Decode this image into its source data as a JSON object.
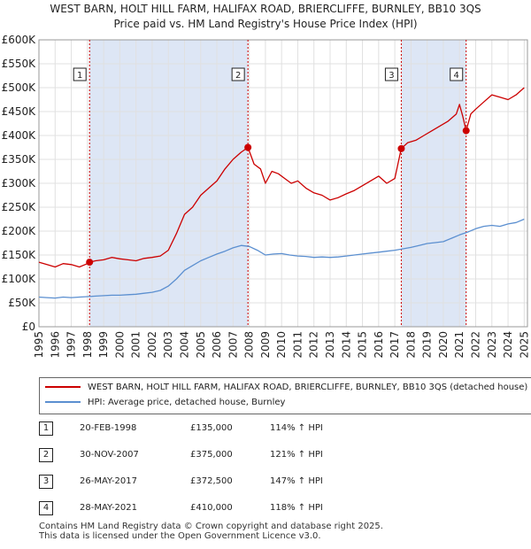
{
  "title_line1": "WEST BARN, HOLT HILL FARM, HALIFAX ROAD, BRIERCLIFFE, BURNLEY, BB10 3QS",
  "title_line2": "Price paid vs. HM Land Registry's House Price Index (HPI)",
  "colors": {
    "property": "#cc0000",
    "hpi": "#5b8fd0",
    "band": "#dde6f5",
    "grid": "#e0e0e0",
    "marker_line": "#cc0000"
  },
  "chart_data": {
    "type": "line",
    "xlim": [
      1995.0,
      2025.2
    ],
    "ylim": [
      0,
      600000
    ],
    "y_ticks": [
      0,
      50000,
      100000,
      150000,
      200000,
      250000,
      300000,
      350000,
      400000,
      450000,
      500000,
      550000,
      600000
    ],
    "y_tick_labels": [
      "£0",
      "£50K",
      "£100K",
      "£150K",
      "£200K",
      "£250K",
      "£300K",
      "£350K",
      "£400K",
      "£450K",
      "£500K",
      "£550K",
      "£600K"
    ],
    "x_ticks": [
      1995,
      1996,
      1997,
      1998,
      1999,
      2000,
      2001,
      2002,
      2003,
      2004,
      2005,
      2006,
      2007,
      2008,
      2009,
      2010,
      2011,
      2012,
      2013,
      2014,
      2015,
      2016,
      2017,
      2018,
      2019,
      2020,
      2021,
      2022,
      2023,
      2024,
      2025
    ],
    "x_tick_labels": [
      "1995",
      "1996",
      "1997",
      "1998",
      "1999",
      "2000",
      "2001",
      "2002",
      "2003",
      "2004",
      "2005",
      "2006",
      "2007",
      "2008",
      "2009",
      "2010",
      "2011",
      "2012",
      "2013",
      "2014",
      "2015",
      "2016",
      "2017",
      "2018",
      "2019",
      "2020",
      "2021",
      "2022",
      "2023",
      "2024",
      "2025"
    ],
    "shaded_bands": [
      [
        1998.13,
        2007.92
      ],
      [
        2017.4,
        2021.41
      ]
    ],
    "series": [
      {
        "name": "WEST BARN, HOLT HILL FARM, HALIFAX ROAD, BRIERCLIFFE, BURNLEY, BB10 3QS (detached house)",
        "x": [
          1995.0,
          1995.5,
          1996.0,
          1996.5,
          1997.0,
          1997.5,
          1998.0,
          1998.13,
          1998.5,
          1999.0,
          1999.5,
          2000.0,
          2000.5,
          2001.0,
          2001.5,
          2002.0,
          2002.5,
          2003.0,
          2003.5,
          2004.0,
          2004.5,
          2005.0,
          2005.5,
          2006.0,
          2006.5,
          2007.0,
          2007.5,
          2007.92,
          2008.3,
          2008.7,
          2009.0,
          2009.4,
          2009.8,
          2010.2,
          2010.6,
          2011.0,
          2011.5,
          2012.0,
          2012.5,
          2013.0,
          2013.5,
          2014.0,
          2014.5,
          2015.0,
          2015.5,
          2016.0,
          2016.5,
          2017.0,
          2017.4,
          2017.8,
          2018.3,
          2018.8,
          2019.3,
          2019.8,
          2020.3,
          2020.8,
          2021.0,
          2021.2,
          2021.41,
          2021.7,
          2022.0,
          2022.5,
          2023.0,
          2023.5,
          2024.0,
          2024.5,
          2025.0
        ],
        "y": [
          135000,
          130000,
          125000,
          132000,
          130000,
          125000,
          132000,
          135000,
          138000,
          140000,
          145000,
          142000,
          140000,
          138000,
          143000,
          145000,
          148000,
          160000,
          195000,
          235000,
          250000,
          275000,
          290000,
          305000,
          330000,
          350000,
          365000,
          375000,
          340000,
          330000,
          300000,
          325000,
          320000,
          310000,
          300000,
          305000,
          290000,
          280000,
          275000,
          265000,
          270000,
          278000,
          285000,
          295000,
          305000,
          315000,
          300000,
          310000,
          372500,
          385000,
          390000,
          400000,
          410000,
          420000,
          430000,
          445000,
          465000,
          440000,
          410000,
          445000,
          455000,
          470000,
          485000,
          480000,
          475000,
          485000,
          500000
        ]
      },
      {
        "name": "HPI: Average price, detached house, Burnley",
        "x": [
          1995.0,
          1995.5,
          1996.0,
          1996.5,
          1997.0,
          1997.5,
          1998.0,
          1998.5,
          1999.0,
          1999.5,
          2000.0,
          2000.5,
          2001.0,
          2001.5,
          2002.0,
          2002.5,
          2003.0,
          2003.5,
          2004.0,
          2004.5,
          2005.0,
          2005.5,
          2006.0,
          2006.5,
          2007.0,
          2007.5,
          2008.0,
          2008.5,
          2009.0,
          2009.5,
          2010.0,
          2010.5,
          2011.0,
          2011.5,
          2012.0,
          2012.5,
          2013.0,
          2013.5,
          2014.0,
          2014.5,
          2015.0,
          2015.5,
          2016.0,
          2016.5,
          2017.0,
          2017.5,
          2018.0,
          2018.5,
          2019.0,
          2019.5,
          2020.0,
          2020.5,
          2021.0,
          2021.5,
          2022.0,
          2022.5,
          2023.0,
          2023.5,
          2024.0,
          2024.5,
          2025.0
        ],
        "y": [
          62000,
          61000,
          60000,
          62000,
          61000,
          62000,
          63000,
          64000,
          65000,
          66000,
          66000,
          67000,
          68000,
          70000,
          72000,
          76000,
          85000,
          100000,
          118000,
          128000,
          138000,
          145000,
          152000,
          158000,
          165000,
          170000,
          168000,
          160000,
          150000,
          152000,
          153000,
          150000,
          148000,
          147000,
          145000,
          146000,
          145000,
          146000,
          148000,
          150000,
          152000,
          154000,
          156000,
          158000,
          160000,
          163000,
          166000,
          170000,
          174000,
          176000,
          178000,
          185000,
          192000,
          198000,
          205000,
          210000,
          212000,
          210000,
          215000,
          218000,
          225000
        ]
      }
    ],
    "sale_markers": [
      {
        "label": "1",
        "x": 1998.13,
        "y": 135000
      },
      {
        "label": "2",
        "x": 2007.92,
        "y": 375000
      },
      {
        "label": "3",
        "x": 2017.4,
        "y": 372500
      },
      {
        "label": "4",
        "x": 2021.41,
        "y": 410000
      }
    ]
  },
  "legend": {
    "property_label": "WEST BARN, HOLT HILL FARM, HALIFAX ROAD, BRIERCLIFFE, BURNLEY, BB10 3QS (detached house)",
    "hpi_label": "HPI: Average price, detached house, Burnley"
  },
  "sales": [
    {
      "num": "1",
      "date": "20-FEB-1998",
      "price": "£135,000",
      "hpi": "114% ↑ HPI"
    },
    {
      "num": "2",
      "date": "30-NOV-2007",
      "price": "£375,000",
      "hpi": "121% ↑ HPI"
    },
    {
      "num": "3",
      "date": "26-MAY-2017",
      "price": "£372,500",
      "hpi": "147% ↑ HPI"
    },
    {
      "num": "4",
      "date": "28-MAY-2021",
      "price": "£410,000",
      "hpi": "118% ↑ HPI"
    }
  ],
  "footer": {
    "line1": "Contains HM Land Registry data © Crown copyright and database right 2025.",
    "line2": "This data is licensed under the Open Government Licence v3.0."
  }
}
